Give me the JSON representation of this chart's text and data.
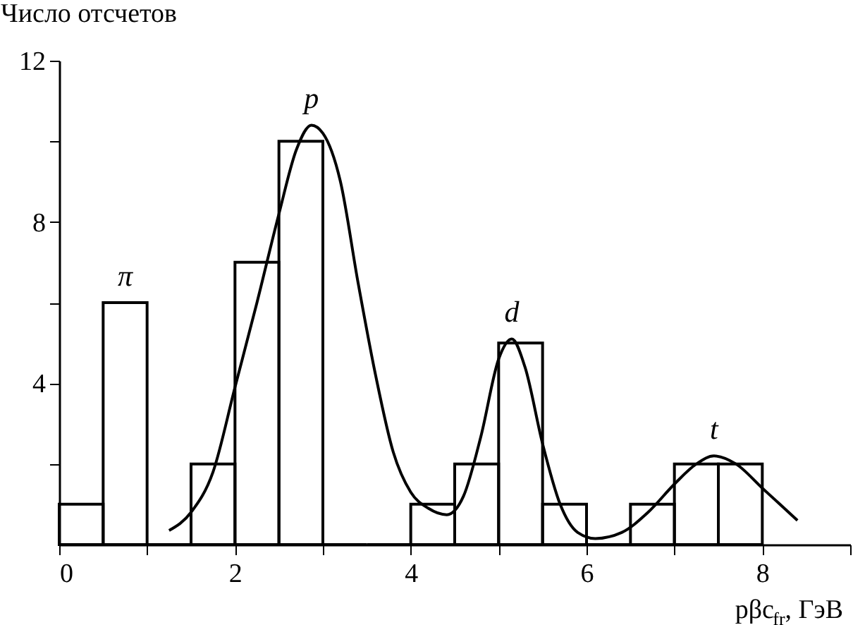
{
  "chart_data": {
    "type": "histogram",
    "xlabel": "pβc$_{fr}$, ГэВ",
    "ylabel": "Число отсчетов",
    "bins": [
      0,
      0.5,
      1,
      1.5,
      2,
      2.5,
      3,
      3.5,
      4,
      4.5,
      5,
      5.5,
      6,
      6.5,
      7,
      7.5,
      8
    ],
    "values": [
      1,
      6,
      0,
      2,
      7,
      10,
      0,
      0,
      1,
      2,
      5,
      1,
      0,
      1,
      2,
      2
    ],
    "color": "#000000",
    "series": [
      {
        "type": "line",
        "color": "#000000",
        "x": [
          1.25,
          1.5,
          1.75,
          2.0,
          2.25,
          2.5,
          2.7,
          2.87,
          3.0,
          3.2,
          3.4,
          3.6,
          3.8,
          4.0,
          4.2,
          4.41,
          4.6,
          4.8,
          5.0,
          5.15,
          5.3,
          5.5,
          5.7,
          5.9,
          6.1,
          6.4,
          6.7,
          7.0,
          7.25,
          7.45,
          7.7,
          8.0,
          8.2,
          8.4
        ],
        "values": [
          0.35,
          0.8,
          1.8,
          3.9,
          6.0,
          8.2,
          9.8,
          10.4,
          10.2,
          9.0,
          6.5,
          4.2,
          2.3,
          1.3,
          0.9,
          0.74,
          1.2,
          2.7,
          4.6,
          5.1,
          4.4,
          2.5,
          1.0,
          0.3,
          0.15,
          0.3,
          0.8,
          1.5,
          2.0,
          2.2,
          2.0,
          1.4,
          1.0,
          0.6
        ]
      }
    ],
    "annotations": [
      {
        "text": "π",
        "x": 0.75,
        "y": 6
      },
      {
        "text": "p",
        "x": 2.87,
        "y": 10.4
      },
      {
        "text": "d",
        "x": 5.15,
        "y": 5.1
      },
      {
        "text": "t",
        "x": 7.45,
        "y": 2.2
      }
    ],
    "xlim": [
      0,
      9
    ],
    "ylim": [
      0,
      12
    ],
    "xticks": [
      0,
      {
        "value": 1,
        "label": null
      },
      2,
      {
        "value": 3,
        "label": null
      },
      4,
      {
        "value": 5,
        "label": null
      },
      6,
      {
        "value": 7,
        "label": null
      },
      8,
      {
        "value": 9,
        "label": null
      }
    ],
    "yticks": [
      {
        "value": 2,
        "label": null
      },
      4,
      {
        "value": 6,
        "label": null
      },
      8,
      {
        "value": 10,
        "label": null
      },
      12
    ],
    "grid": false
  }
}
